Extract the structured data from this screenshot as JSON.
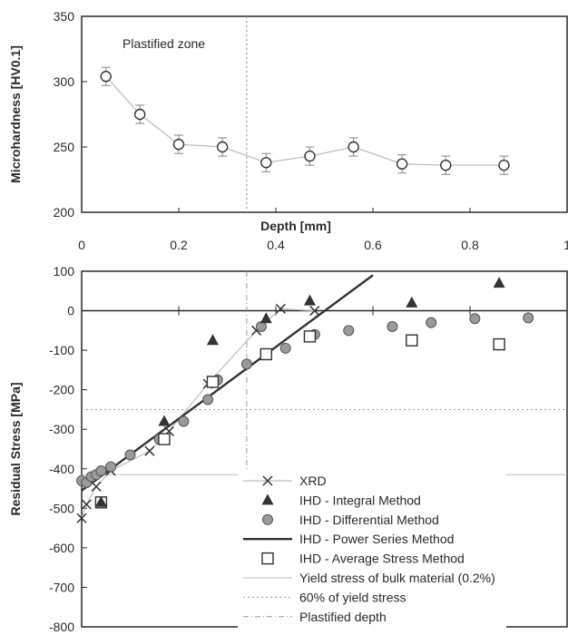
{
  "chart_data": [
    {
      "type": "line",
      "ylabel": "Microhardness [HV0.1]",
      "xlabel": "Depth [mm]",
      "xlim": [
        0,
        1
      ],
      "ylim": [
        200,
        350
      ],
      "xticks": [
        "0",
        "0.2",
        "0.4",
        "0.6",
        "0.8",
        "1"
      ],
      "yticks": [
        "200",
        "250",
        "300",
        "350"
      ],
      "annotation": "Plastified zone",
      "plastified_depth": 0.34,
      "series": [
        {
          "x": [
            0.05,
            0.12,
            0.2,
            0.29,
            0.38,
            0.47,
            0.56,
            0.66,
            0.75,
            0.87
          ],
          "y": [
            304,
            275,
            252,
            250,
            238,
            243,
            250,
            237,
            236,
            236
          ],
          "error": [
            7,
            7,
            7,
            7,
            7,
            7,
            7,
            7,
            7,
            7
          ]
        }
      ],
      "grid": false
    },
    {
      "type": "scatter",
      "ylabel": "Residual Stress [MPa]",
      "xlim": [
        0,
        1
      ],
      "ylim": [
        -800,
        100
      ],
      "yticks": [
        "100",
        "0",
        "-100",
        "-200",
        "-300",
        "-400",
        "-500",
        "-600",
        "-700",
        "-800"
      ],
      "series": [
        {
          "name": "XRD",
          "x": [
            0.0,
            0.01,
            0.03,
            0.06,
            0.14,
            0.18,
            0.26,
            0.36,
            0.41,
            0.48
          ],
          "y": [
            -525,
            -490,
            -445,
            -405,
            -355,
            -305,
            -185,
            -50,
            5,
            0
          ]
        },
        {
          "name": "IHD - Integral Method",
          "x": [
            0.04,
            0.17,
            0.27,
            0.38,
            0.47,
            0.68,
            0.86
          ],
          "y": [
            -485,
            -280,
            -75,
            -20,
            25,
            20,
            70
          ]
        },
        {
          "name": "IHD - Differential Method",
          "x": [
            0.0,
            0.01,
            0.02,
            0.03,
            0.04,
            0.06,
            0.1,
            0.16,
            0.21,
            0.26,
            0.28,
            0.34,
            0.37,
            0.42,
            0.48,
            0.55,
            0.64,
            0.72,
            0.81,
            0.92
          ],
          "y": [
            -430,
            -435,
            -420,
            -415,
            -405,
            -395,
            -365,
            -325,
            -280,
            -225,
            -175,
            -135,
            -40,
            -95,
            -60,
            -50,
            -40,
            -30,
            -20,
            -18
          ]
        },
        {
          "name": "IHD - Power Series Method",
          "x": [
            0.0,
            0.6
          ],
          "y": [
            -455,
            90
          ]
        },
        {
          "name": "IHD - Average Stress Method",
          "x": [
            0.04,
            0.17,
            0.27,
            0.38,
            0.47,
            0.68,
            0.86
          ],
          "y": [
            -485,
            -325,
            -180,
            -110,
            -65,
            -75,
            -85
          ]
        }
      ],
      "reference_lines": [
        {
          "name": "Yield stress of bulk material (0.2%)",
          "y": -415
        },
        {
          "name": "60% of yield stress",
          "y": -250
        },
        {
          "name": "Plastified depth",
          "x": 0.34
        }
      ],
      "legend_position": "bottom-right",
      "grid": false
    }
  ],
  "colors": {
    "axis": "#2a2a2a",
    "series_dark": "#333333",
    "marker_fill": "#9a9a9a",
    "light_line": "#bdbdbd"
  }
}
